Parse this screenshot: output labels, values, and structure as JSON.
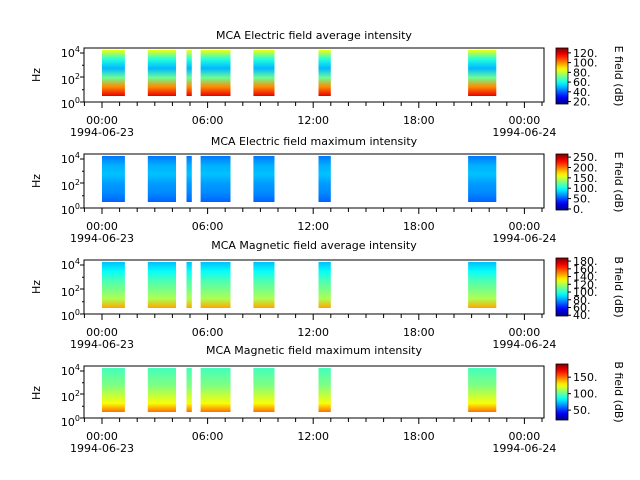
{
  "chart_data": [
    {
      "type": "heatmap",
      "title": "MCA  Electric field average intensity",
      "ylabel": "Hz",
      "colorbar_label": "E field (dB)",
      "colorbar_ticks": [
        "20.",
        "40.",
        "60.",
        "80.",
        "100.",
        "120."
      ],
      "colorbar_range": [
        15,
        130
      ],
      "colormap": "jet-rainbow",
      "x_ticks": [
        "00:00",
        "06:00",
        "12:00",
        "18:00",
        "00:00"
      ],
      "x_dates": [
        "1994-06-23",
        "1994-06-24"
      ],
      "y_ticks": [
        "10^0",
        "10^2",
        "10^4"
      ],
      "data_intervals_hours": [
        [
          0.0,
          1.3
        ],
        [
          2.6,
          4.2
        ],
        [
          4.8,
          5.1
        ],
        [
          5.6,
          7.3
        ],
        [
          8.6,
          9.8
        ],
        [
          12.3,
          13.0
        ],
        [
          20.8,
          22.4
        ]
      ],
      "band_levels_db": [
        85,
        62,
        50,
        70,
        100,
        118
      ]
    },
    {
      "type": "heatmap",
      "title": "MCA  Electric field maximum intensity",
      "ylabel": "Hz",
      "colorbar_label": "E field (dB)",
      "colorbar_ticks": [
        "0.",
        "50.",
        "100.",
        "150.",
        "200.",
        "250."
      ],
      "colorbar_range": [
        -5,
        265
      ],
      "colormap": "jet-rainbow",
      "x_ticks": [
        "00:00",
        "06:00",
        "12:00",
        "18:00",
        "00:00"
      ],
      "x_dates": [
        "1994-06-23",
        "1994-06-24"
      ],
      "y_ticks": [
        "10^0",
        "10^2",
        "10^4"
      ],
      "data_intervals_hours": [
        [
          0.0,
          1.3
        ],
        [
          2.6,
          4.2
        ],
        [
          4.8,
          5.1
        ],
        [
          5.6,
          7.3
        ],
        [
          8.6,
          9.8
        ],
        [
          12.3,
          13.0
        ],
        [
          20.8,
          22.4
        ]
      ],
      "band_levels_db": [
        60,
        75,
        80,
        70,
        65,
        55
      ]
    },
    {
      "type": "heatmap",
      "title": "MCA  Magnetic field average intensity",
      "ylabel": "Hz",
      "colorbar_label": "B field (dB)",
      "colorbar_ticks": [
        "40.",
        "60.",
        "80.",
        "100.",
        "120.",
        "140.",
        "160.",
        "180."
      ],
      "colorbar_range": [
        38,
        188
      ],
      "colormap": "jet-rainbow",
      "x_ticks": [
        "00:00",
        "06:00",
        "12:00",
        "18:00",
        "00:00"
      ],
      "x_dates": [
        "1994-06-23",
        "1994-06-24"
      ],
      "y_ticks": [
        "10^0",
        "10^2",
        "10^4"
      ],
      "data_intervals_hours": [
        [
          0.0,
          1.3
        ],
        [
          2.6,
          4.2
        ],
        [
          4.8,
          5.1
        ],
        [
          5.6,
          7.3
        ],
        [
          8.6,
          9.8
        ],
        [
          12.3,
          13.0
        ],
        [
          20.8,
          22.4
        ]
      ],
      "band_levels_db": [
        85,
        95,
        105,
        112,
        120,
        145
      ]
    },
    {
      "type": "heatmap",
      "title": "MCA  Magnetic field maximum intensity",
      "ylabel": "Hz",
      "colorbar_label": "B field (dB)",
      "colorbar_ticks": [
        "50.",
        "100.",
        "150."
      ],
      "colorbar_range": [
        20,
        190
      ],
      "colormap": "jet-rainbow",
      "x_ticks": [
        "00:00",
        "06:00",
        "12:00",
        "18:00",
        "00:00"
      ],
      "x_dates": [
        "1994-06-23",
        "1994-06-24"
      ],
      "y_ticks": [
        "10^0",
        "10^2",
        "10^4"
      ],
      "data_intervals_hours": [
        [
          0.0,
          1.3
        ],
        [
          2.6,
          4.2
        ],
        [
          4.8,
          5.1
        ],
        [
          5.6,
          7.3
        ],
        [
          8.6,
          9.8
        ],
        [
          12.3,
          13.0
        ],
        [
          20.8,
          22.4
        ]
      ],
      "band_levels_db": [
        95,
        100,
        105,
        115,
        125,
        150
      ]
    }
  ]
}
